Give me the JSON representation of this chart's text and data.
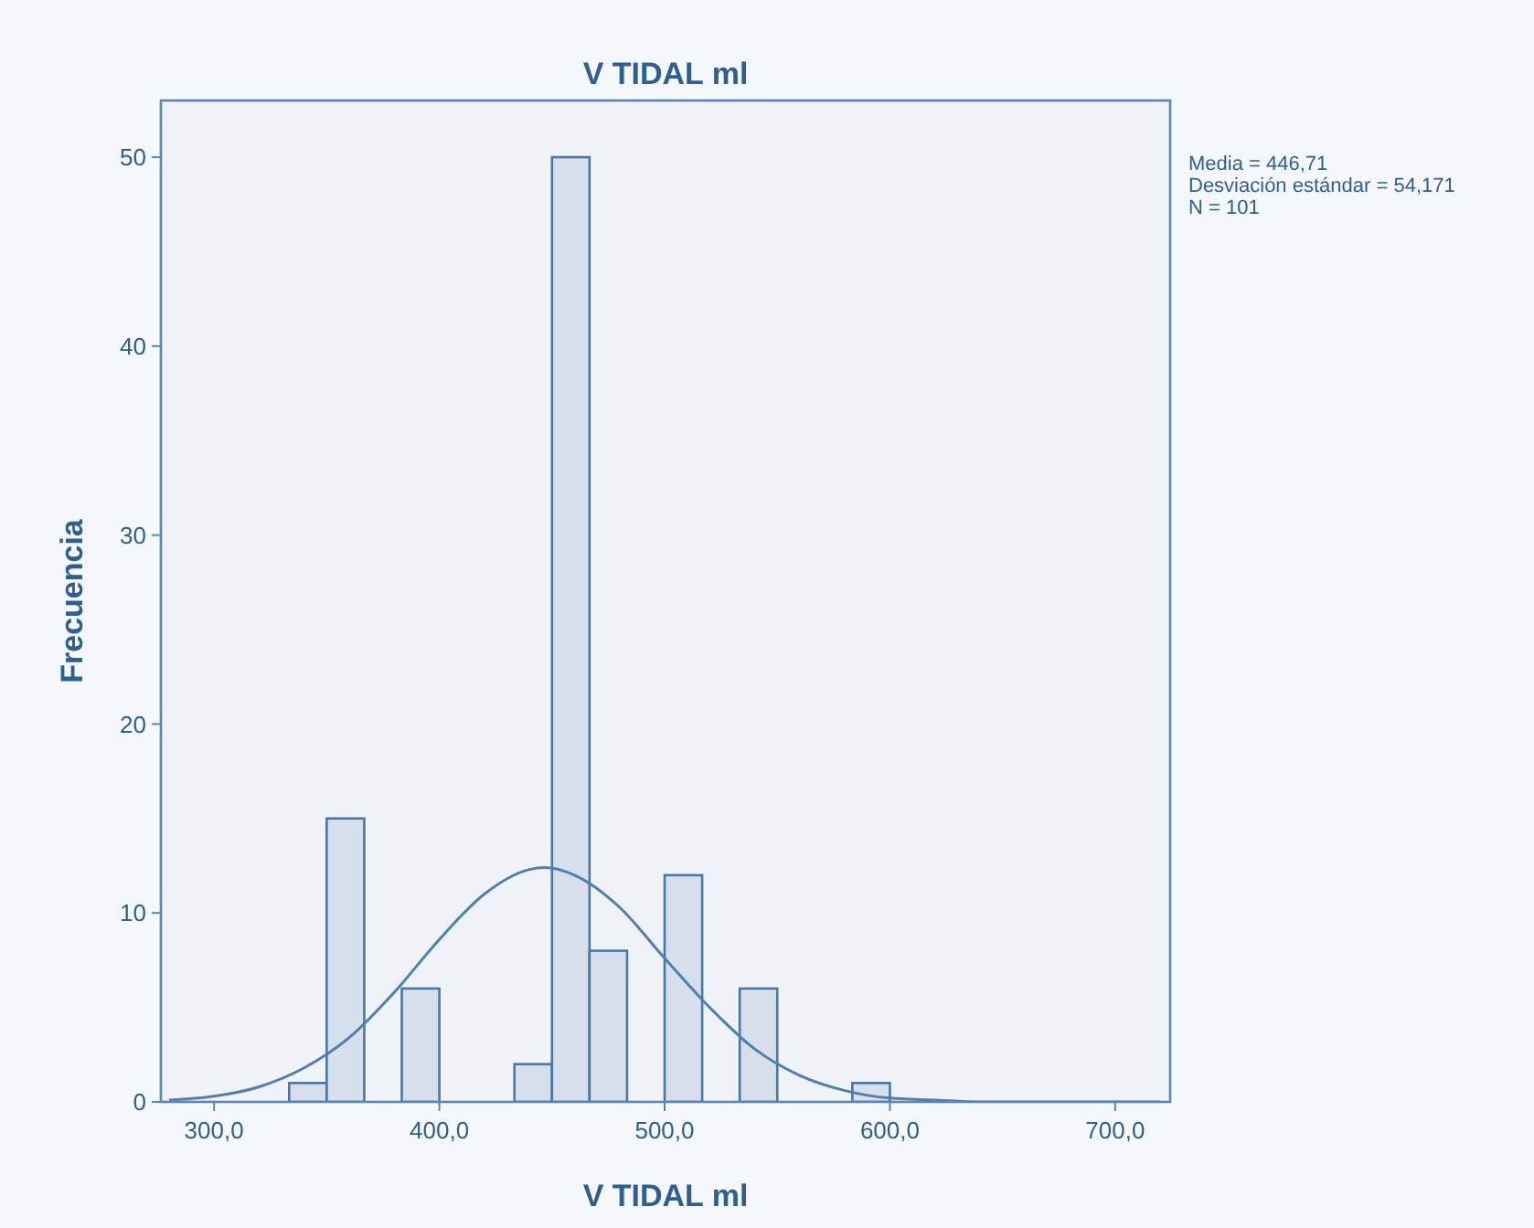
{
  "chart_data": {
    "type": "histogram",
    "title": "V TIDAL ml",
    "xlabel": "V TIDAL ml",
    "ylabel": "Frecuencia",
    "bins": [
      333.333,
      350,
      366.667,
      383.333,
      400,
      416.667,
      433.333,
      450,
      466.667,
      483.333,
      500,
      516.667,
      533.333,
      550,
      566.667,
      583.333,
      600
    ],
    "values": [
      1,
      15,
      0,
      6,
      0,
      0,
      2,
      50,
      8,
      0,
      12,
      0,
      6,
      0,
      0,
      1
    ],
    "color": "#d5e0ec",
    "series": [
      {
        "type": "line",
        "color": "#4f7fae",
        "x": [
          280,
          300,
          320,
          340,
          360,
          380,
          400,
          420,
          440,
          446.71,
          460,
          480,
          500,
          520,
          540,
          560,
          580,
          600,
          620,
          640,
          660,
          700,
          720
        ],
        "values": [
          0.1,
          0.3,
          0.8,
          1.8,
          3.4,
          5.8,
          8.6,
          11,
          12.3,
          12.4,
          12,
          10.3,
          7.6,
          5,
          2.8,
          1.4,
          0.6,
          0.2,
          0.1,
          0,
          0,
          0,
          0
        ]
      }
    ],
    "xlim": [
      276.4,
      724.4
    ],
    "ylim": [
      0,
      53
    ],
    "xticks": [
      {
        "value": 300,
        "label": "300,0"
      },
      {
        "value": 400,
        "label": "400,0"
      },
      {
        "value": 500,
        "label": "500,0"
      },
      {
        "value": 600,
        "label": "600,0"
      },
      {
        "value": 700,
        "label": "700,0"
      }
    ],
    "yticks": [
      0,
      10,
      20,
      30,
      40,
      50
    ],
    "annotations": [
      "Media = 446,71",
      "Desviación estándar = 54,171",
      "N = 101"
    ]
  }
}
